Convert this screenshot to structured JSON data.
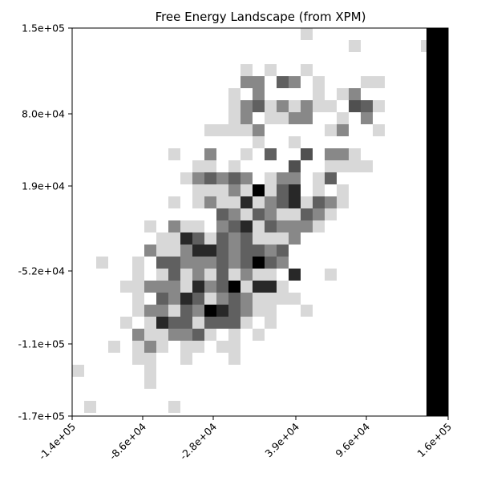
{
  "chart_data": {
    "type": "heatmap",
    "title": "Free Energy Landscape (from XPM)",
    "xlabel": "",
    "ylabel": "",
    "x_ticks": [
      "-1.4e+05",
      "-8.6e+04",
      "-2.8e+04",
      "3.9e+04",
      "9.6e+04",
      "1.6e+05"
    ],
    "y_ticks": [
      "1.5e+05",
      "8.0e+04",
      "1.9e+04",
      "-5.2e+04",
      "-1.1e+05",
      "-1.7e+05"
    ],
    "xlim": [
      -140000,
      160000
    ],
    "ylim": [
      -170000,
      150000
    ],
    "colormap": "gray (darker = lower free energy)",
    "grid": false,
    "legend": "none",
    "cell_size": [
      10000,
      10000
    ],
    "note_values": "cells listed as [x_index, y_index_from_top, gray_level] where gray_level in 0..255; all unlisted cells are white",
    "cells": [
      [
        19,
        0,
        216
      ],
      [
        23,
        1,
        216
      ],
      [
        29,
        1,
        216
      ],
      [
        14,
        3,
        216
      ],
      [
        16,
        3,
        216
      ],
      [
        19,
        3,
        216
      ],
      [
        14,
        4,
        136
      ],
      [
        15,
        4,
        136
      ],
      [
        17,
        4,
        96
      ],
      [
        18,
        4,
        136
      ],
      [
        20,
        4,
        216
      ],
      [
        24,
        4,
        216
      ],
      [
        25,
        4,
        216
      ],
      [
        13,
        5,
        216
      ],
      [
        15,
        5,
        136
      ],
      [
        20,
        5,
        216
      ],
      [
        22,
        5,
        216
      ],
      [
        23,
        5,
        136
      ],
      [
        13,
        6,
        216
      ],
      [
        14,
        6,
        136
      ],
      [
        15,
        6,
        96
      ],
      [
        16,
        6,
        216
      ],
      [
        17,
        6,
        136
      ],
      [
        18,
        6,
        216
      ],
      [
        19,
        6,
        136
      ],
      [
        20,
        6,
        216
      ],
      [
        21,
        6,
        216
      ],
      [
        23,
        6,
        80
      ],
      [
        24,
        6,
        96
      ],
      [
        25,
        6,
        216
      ],
      [
        13,
        7,
        216
      ],
      [
        14,
        7,
        136
      ],
      [
        16,
        7,
        216
      ],
      [
        17,
        7,
        216
      ],
      [
        18,
        7,
        136
      ],
      [
        19,
        7,
        136
      ],
      [
        22,
        7,
        216
      ],
      [
        24,
        7,
        136
      ],
      [
        11,
        8,
        216
      ],
      [
        12,
        8,
        216
      ],
      [
        13,
        8,
        216
      ],
      [
        14,
        8,
        216
      ],
      [
        15,
        8,
        136
      ],
      [
        21,
        8,
        216
      ],
      [
        22,
        8,
        136
      ],
      [
        25,
        8,
        216
      ],
      [
        15,
        9,
        216
      ],
      [
        18,
        9,
        216
      ],
      [
        8,
        10,
        216
      ],
      [
        11,
        10,
        136
      ],
      [
        14,
        10,
        216
      ],
      [
        16,
        10,
        96
      ],
      [
        19,
        10,
        80
      ],
      [
        21,
        10,
        136
      ],
      [
        22,
        10,
        136
      ],
      [
        23,
        10,
        216
      ],
      [
        10,
        11,
        216
      ],
      [
        11,
        11,
        216
      ],
      [
        13,
        11,
        216
      ],
      [
        18,
        11,
        80
      ],
      [
        21,
        11,
        216
      ],
      [
        22,
        11,
        216
      ],
      [
        23,
        11,
        216
      ],
      [
        24,
        11,
        216
      ],
      [
        9,
        12,
        216
      ],
      [
        10,
        12,
        136
      ],
      [
        11,
        12,
        96
      ],
      [
        12,
        12,
        136
      ],
      [
        13,
        12,
        96
      ],
      [
        14,
        12,
        136
      ],
      [
        16,
        12,
        216
      ],
      [
        17,
        12,
        136
      ],
      [
        18,
        12,
        136
      ],
      [
        20,
        12,
        216
      ],
      [
        21,
        12,
        96
      ],
      [
        10,
        13,
        216
      ],
      [
        11,
        13,
        216
      ],
      [
        12,
        13,
        216
      ],
      [
        13,
        13,
        136
      ],
      [
        14,
        13,
        216
      ],
      [
        15,
        13,
        0
      ],
      [
        16,
        13,
        216
      ],
      [
        17,
        13,
        96
      ],
      [
        18,
        13,
        40
      ],
      [
        20,
        13,
        216
      ],
      [
        22,
        13,
        216
      ],
      [
        8,
        14,
        216
      ],
      [
        10,
        14,
        216
      ],
      [
        11,
        14,
        136
      ],
      [
        12,
        14,
        216
      ],
      [
        13,
        14,
        216
      ],
      [
        14,
        14,
        40
      ],
      [
        15,
        14,
        216
      ],
      [
        16,
        14,
        136
      ],
      [
        17,
        14,
        96
      ],
      [
        18,
        14,
        40
      ],
      [
        19,
        14,
        216
      ],
      [
        20,
        14,
        96
      ],
      [
        21,
        14,
        136
      ],
      [
        22,
        14,
        216
      ],
      [
        12,
        15,
        96
      ],
      [
        13,
        15,
        136
      ],
      [
        14,
        15,
        216
      ],
      [
        15,
        15,
        96
      ],
      [
        16,
        15,
        136
      ],
      [
        17,
        15,
        216
      ],
      [
        18,
        15,
        216
      ],
      [
        19,
        15,
        96
      ],
      [
        20,
        15,
        136
      ],
      [
        21,
        15,
        216
      ],
      [
        6,
        16,
        216
      ],
      [
        8,
        16,
        136
      ],
      [
        9,
        16,
        216
      ],
      [
        10,
        16,
        216
      ],
      [
        12,
        16,
        136
      ],
      [
        13,
        16,
        96
      ],
      [
        14,
        16,
        40
      ],
      [
        15,
        16,
        216
      ],
      [
        16,
        16,
        96
      ],
      [
        17,
        16,
        136
      ],
      [
        18,
        16,
        136
      ],
      [
        19,
        16,
        136
      ],
      [
        20,
        16,
        216
      ],
      [
        7,
        17,
        216
      ],
      [
        8,
        17,
        216
      ],
      [
        9,
        17,
        40
      ],
      [
        10,
        17,
        96
      ],
      [
        11,
        17,
        216
      ],
      [
        12,
        17,
        96
      ],
      [
        13,
        17,
        136
      ],
      [
        14,
        17,
        96
      ],
      [
        15,
        17,
        216
      ],
      [
        16,
        17,
        216
      ],
      [
        17,
        17,
        216
      ],
      [
        18,
        17,
        136
      ],
      [
        6,
        18,
        136
      ],
      [
        7,
        18,
        216
      ],
      [
        8,
        18,
        216
      ],
      [
        9,
        18,
        136
      ],
      [
        10,
        18,
        40
      ],
      [
        11,
        18,
        40
      ],
      [
        12,
        18,
        96
      ],
      [
        13,
        18,
        136
      ],
      [
        14,
        18,
        96
      ],
      [
        15,
        18,
        96
      ],
      [
        16,
        18,
        136
      ],
      [
        17,
        18,
        96
      ],
      [
        2,
        19,
        216
      ],
      [
        5,
        19,
        216
      ],
      [
        7,
        19,
        96
      ],
      [
        8,
        19,
        96
      ],
      [
        9,
        19,
        136
      ],
      [
        10,
        19,
        136
      ],
      [
        11,
        19,
        136
      ],
      [
        12,
        19,
        96
      ],
      [
        13,
        19,
        136
      ],
      [
        14,
        19,
        96
      ],
      [
        15,
        19,
        0
      ],
      [
        16,
        19,
        96
      ],
      [
        17,
        19,
        136
      ],
      [
        5,
        20,
        216
      ],
      [
        7,
        20,
        216
      ],
      [
        8,
        20,
        96
      ],
      [
        9,
        20,
        216
      ],
      [
        10,
        20,
        136
      ],
      [
        11,
        20,
        216
      ],
      [
        12,
        20,
        96
      ],
      [
        13,
        20,
        216
      ],
      [
        14,
        20,
        136
      ],
      [
        15,
        20,
        216
      ],
      [
        16,
        20,
        216
      ],
      [
        18,
        20,
        40
      ],
      [
        21,
        20,
        216
      ],
      [
        4,
        21,
        216
      ],
      [
        5,
        21,
        216
      ],
      [
        6,
        21,
        136
      ],
      [
        7,
        21,
        136
      ],
      [
        8,
        21,
        136
      ],
      [
        9,
        21,
        216
      ],
      [
        10,
        21,
        40
      ],
      [
        11,
        21,
        136
      ],
      [
        12,
        21,
        96
      ],
      [
        13,
        21,
        0
      ],
      [
        14,
        21,
        216
      ],
      [
        15,
        21,
        40
      ],
      [
        16,
        21,
        40
      ],
      [
        17,
        21,
        216
      ],
      [
        5,
        22,
        216
      ],
      [
        7,
        22,
        96
      ],
      [
        8,
        22,
        136
      ],
      [
        9,
        22,
        40
      ],
      [
        10,
        22,
        96
      ],
      [
        11,
        22,
        216
      ],
      [
        12,
        22,
        136
      ],
      [
        13,
        22,
        96
      ],
      [
        14,
        22,
        136
      ],
      [
        15,
        22,
        216
      ],
      [
        16,
        22,
        216
      ],
      [
        17,
        22,
        216
      ],
      [
        18,
        22,
        216
      ],
      [
        5,
        23,
        216
      ],
      [
        6,
        23,
        136
      ],
      [
        7,
        23,
        136
      ],
      [
        8,
        23,
        216
      ],
      [
        9,
        23,
        96
      ],
      [
        10,
        23,
        136
      ],
      [
        11,
        23,
        0
      ],
      [
        12,
        23,
        40
      ],
      [
        13,
        23,
        96
      ],
      [
        14,
        23,
        136
      ],
      [
        15,
        23,
        216
      ],
      [
        16,
        23,
        216
      ],
      [
        19,
        23,
        216
      ],
      [
        4,
        24,
        216
      ],
      [
        6,
        24,
        216
      ],
      [
        7,
        24,
        40
      ],
      [
        8,
        24,
        96
      ],
      [
        9,
        24,
        96
      ],
      [
        10,
        24,
        216
      ],
      [
        11,
        24,
        96
      ],
      [
        12,
        24,
        96
      ],
      [
        13,
        24,
        96
      ],
      [
        14,
        24,
        216
      ],
      [
        16,
        24,
        216
      ],
      [
        5,
        25,
        136
      ],
      [
        6,
        25,
        216
      ],
      [
        7,
        25,
        216
      ],
      [
        8,
        25,
        136
      ],
      [
        9,
        25,
        136
      ],
      [
        10,
        25,
        96
      ],
      [
        11,
        25,
        216
      ],
      [
        13,
        25,
        216
      ],
      [
        15,
        25,
        216
      ],
      [
        3,
        26,
        216
      ],
      [
        5,
        26,
        216
      ],
      [
        6,
        26,
        136
      ],
      [
        7,
        26,
        216
      ],
      [
        9,
        26,
        216
      ],
      [
        10,
        26,
        216
      ],
      [
        12,
        26,
        216
      ],
      [
        13,
        26,
        216
      ],
      [
        5,
        27,
        216
      ],
      [
        6,
        27,
        216
      ],
      [
        9,
        27,
        216
      ],
      [
        13,
        27,
        216
      ],
      [
        0,
        28,
        216
      ],
      [
        6,
        28,
        216
      ],
      [
        6,
        29,
        216
      ],
      [
        1,
        31,
        216
      ],
      [
        8,
        31,
        216
      ]
    ],
    "edge_column": {
      "x_range": [
        141000,
        160000
      ],
      "gray_level": 0
    }
  }
}
